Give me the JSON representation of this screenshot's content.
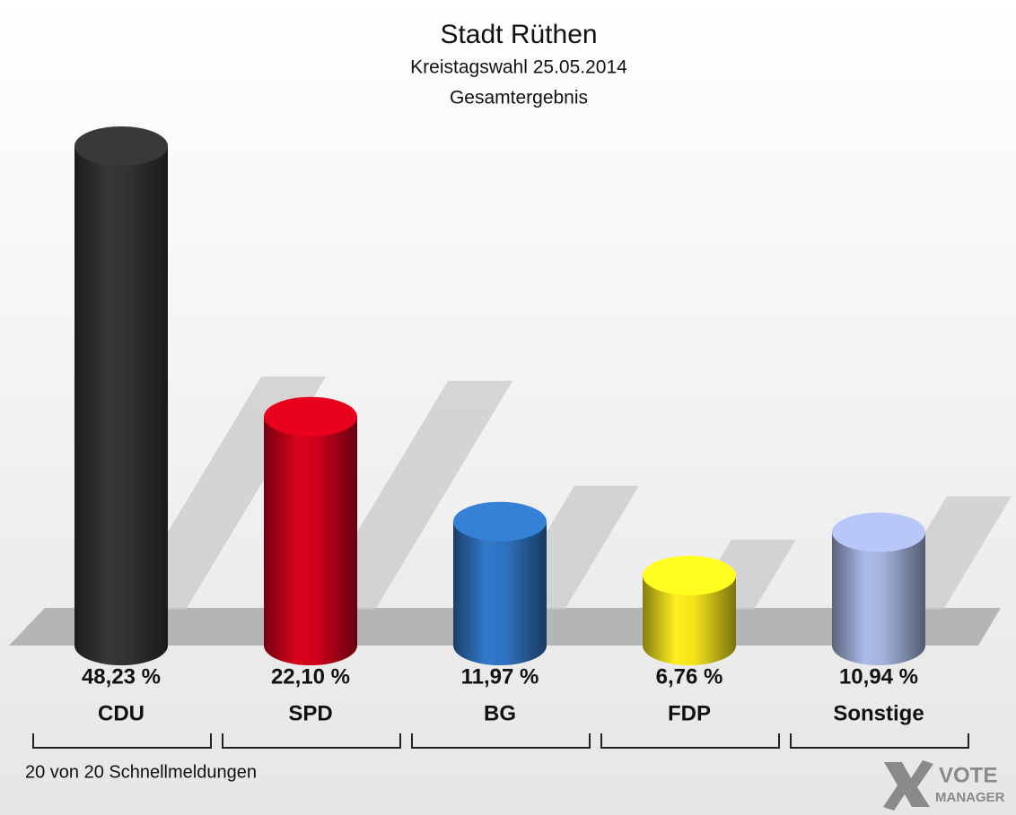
{
  "chart_data": {
    "type": "bar",
    "title": "Stadt Rüthen",
    "subtitle": [
      "Kreistagswahl 25.05.2014",
      "Gesamtergebnis"
    ],
    "categories": [
      "CDU",
      "SPD",
      "BG",
      "FDP",
      "Sonstige"
    ],
    "values": [
      48.23,
      22.1,
      11.97,
      6.76,
      10.94
    ],
    "value_labels": [
      "48,23 %",
      "22,10 %",
      "11,97 %",
      "6,76 %",
      "10,94 %"
    ],
    "colors": [
      "#333333",
      "#d0021b",
      "#2f73c0",
      "#f5e31c",
      "#a3b3dd"
    ],
    "footer": "20 von 20 Schnellmeldungen",
    "logo": [
      "VOTE",
      "MANAGER"
    ]
  }
}
